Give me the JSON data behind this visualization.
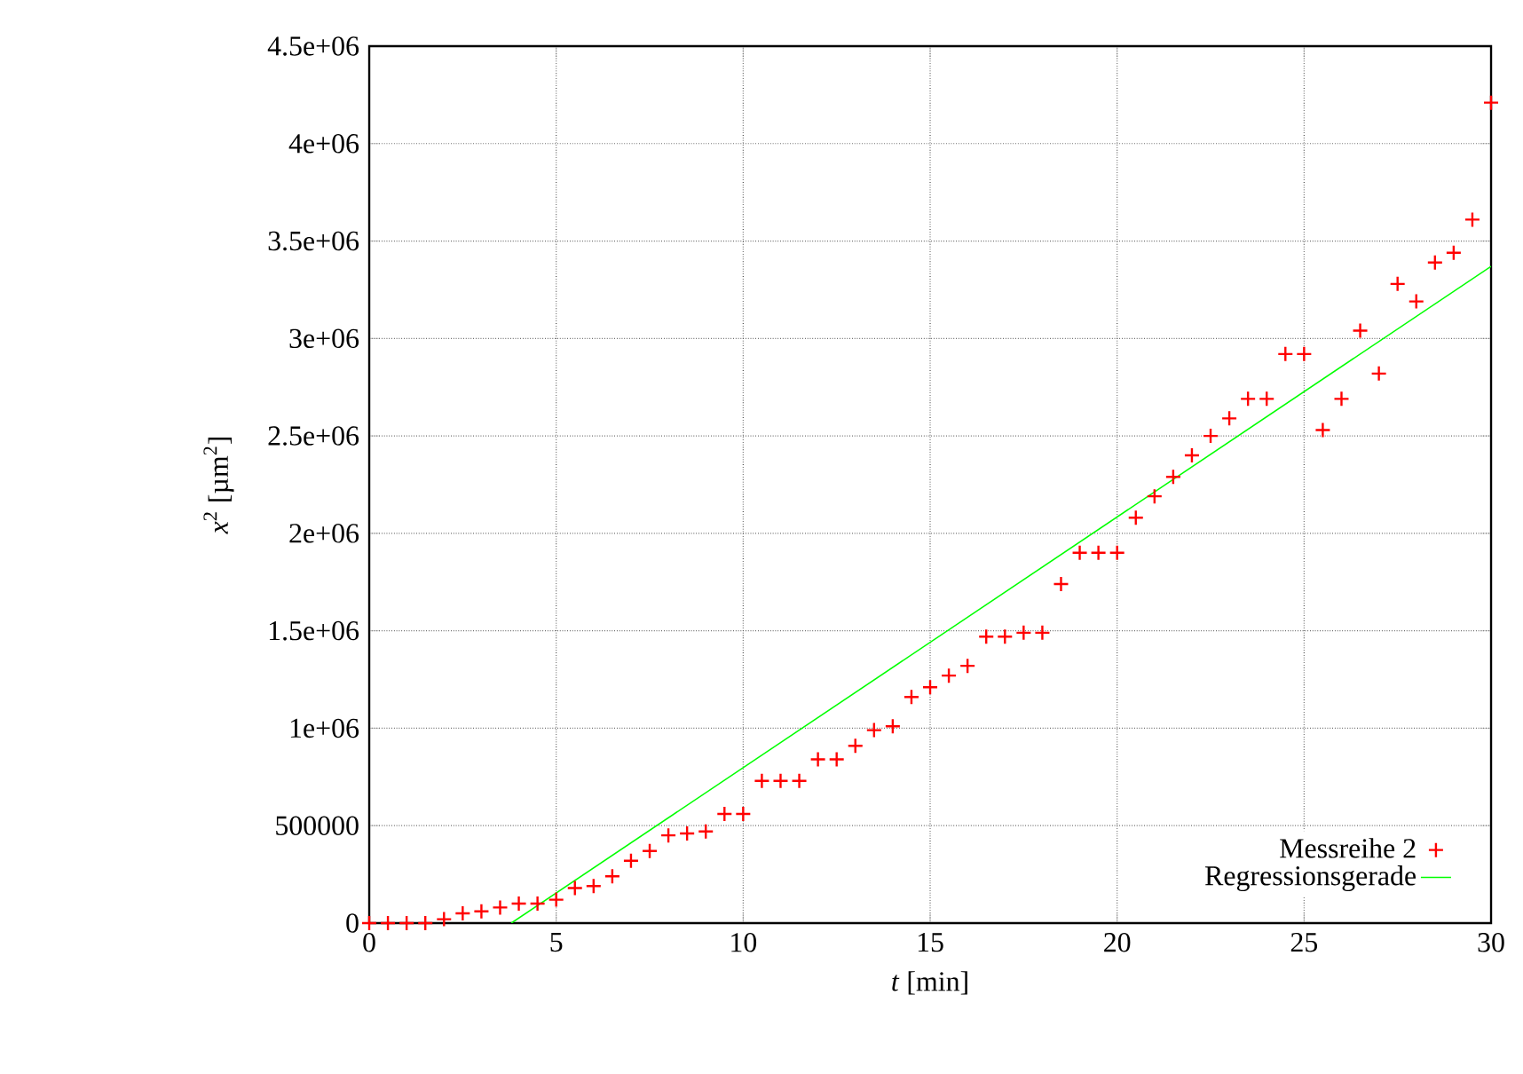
{
  "chart_data": {
    "type": "scatter",
    "xlabel": "*t* [min]",
    "ylabel": "*x*$^{2}$ [µm$^{2}$]",
    "xlim": [
      0,
      30
    ],
    "ylim": [
      0,
      4500000
    ],
    "xticks": [
      0,
      5,
      10,
      15,
      20,
      25,
      30
    ],
    "yticks": [
      0,
      500000,
      {
        "value": 1000000,
        "label": "1e+06"
      },
      {
        "value": 1500000,
        "label": "1.5e+06"
      },
      {
        "value": 2000000,
        "label": "2e+06"
      },
      {
        "value": 2500000,
        "label": "2.5e+06"
      },
      {
        "value": 3000000,
        "label": "3e+06"
      },
      {
        "value": 3500000,
        "label": "3.5e+06"
      },
      {
        "value": 4000000,
        "label": "4e+06"
      },
      {
        "value": 4500000,
        "label": "4.5e+06"
      }
    ],
    "grid": true,
    "legend": "bottom right",
    "series": [
      {
        "name": "Messreihe 2",
        "marker": "cross",
        "color": "#ff0000",
        "x": [
          0,
          0.5,
          1,
          1.5,
          2,
          2.5,
          3,
          3.5,
          4,
          4.5,
          5,
          5.5,
          6,
          6.5,
          7,
          7.5,
          8,
          8.5,
          9,
          9.5,
          10,
          10.5,
          11,
          11.5,
          12,
          12.5,
          13,
          13.5,
          14,
          14.5,
          15,
          15.5,
          16,
          16.5,
          17,
          17.5,
          18,
          18.5,
          19,
          19.5,
          20,
          20.5,
          21,
          21.5,
          22,
          22.5,
          23,
          23.5,
          24,
          24.5,
          25,
          25.5,
          26,
          26.5,
          27,
          27.5,
          28,
          28.5,
          29,
          29.5,
          30
        ],
        "values": [
          0,
          0,
          0,
          0,
          20000,
          50000,
          60000,
          80000,
          100000,
          100000,
          120000,
          180000,
          190000,
          240000,
          320000,
          370000,
          450000,
          460000,
          470000,
          560000,
          560000,
          730000,
          730000,
          730000,
          840000,
          840000,
          910000,
          990000,
          1010000,
          1160000,
          1210000,
          1270000,
          1320000,
          1470000,
          1470000,
          1490000,
          1490000,
          1740000,
          1900000,
          1900000,
          1900000,
          2080000,
          2190000,
          2290000,
          2400000,
          2500000,
          2590000,
          2690000,
          2690000,
          2920000,
          2920000,
          2530000,
          2690000,
          3040000,
          2820000,
          3280000,
          3190000,
          3390000,
          3440000,
          3610000,
          4210000
        ]
      },
      {
        "name": "Regressionsgerade",
        "type": "line",
        "color": "#00ff00",
        "line_style": "solid",
        "x": [
          3.8,
          30
        ],
        "values": [
          0,
          3370000
        ]
      }
    ]
  }
}
